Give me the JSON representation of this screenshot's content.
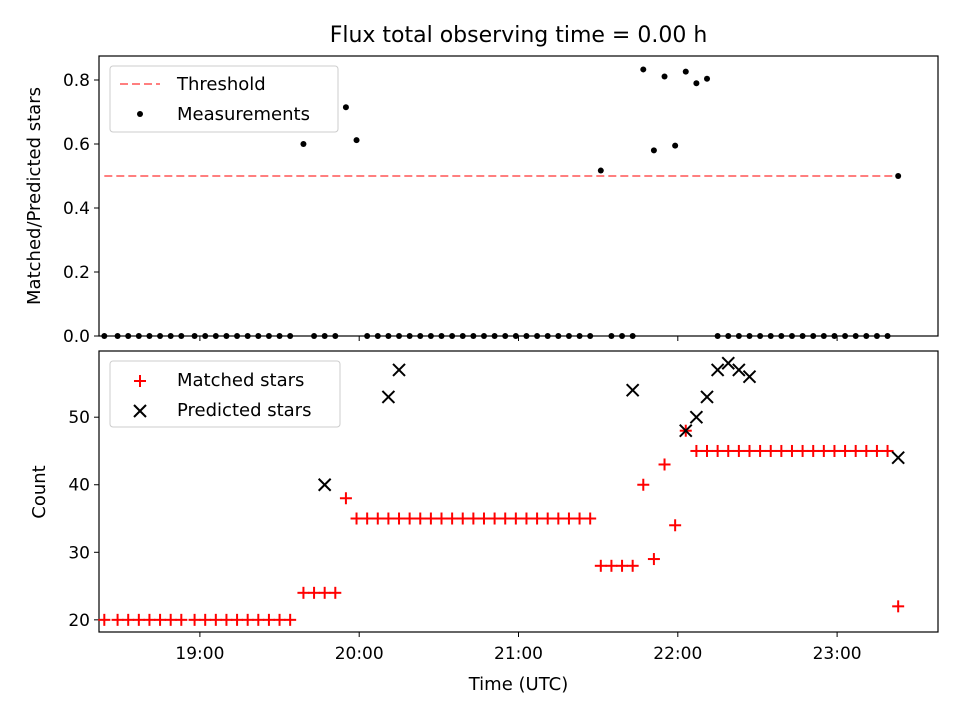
{
  "chart_data": [
    {
      "type": "scatter",
      "title": "Flux total observing time = 0.00 h",
      "xlabel": "",
      "ylabel": "Matched/Predicted stars",
      "ylim": [
        0,
        0.875
      ],
      "xlim": [
        "18:22",
        "23:38"
      ],
      "yticks": [
        "0.0",
        "0.2",
        "0.4",
        "0.6",
        "0.8"
      ],
      "legend": {
        "placement": "top-left",
        "entries": [
          "Threshold",
          "Measurements"
        ]
      },
      "threshold": {
        "name": "Threshold",
        "value": 0.5,
        "x_range": [
          "18:24",
          "23:23"
        ],
        "color": "#ff7f7f",
        "style": "dashed"
      },
      "series": [
        {
          "name": "Measurements",
          "color": "#000000",
          "marker": "dot",
          "x": [
            "18:24",
            "18:29",
            "18:33",
            "18:37",
            "18:41",
            "18:45",
            "18:49",
            "18:53",
            "18:58",
            "19:02",
            "19:06",
            "19:10",
            "19:14",
            "19:18",
            "19:22",
            "19:26",
            "19:30",
            "19:34",
            "19:39",
            "19:43",
            "19:47",
            "19:51",
            "19:55",
            "19:59",
            "20:03",
            "20:07",
            "20:11",
            "20:15",
            "20:19",
            "20:23",
            "20:27",
            "20:31",
            "20:35",
            "20:39",
            "20:43",
            "20:47",
            "20:51",
            "20:55",
            "20:59",
            "21:03",
            "21:07",
            "21:11",
            "21:15",
            "21:19",
            "21:23",
            "21:27",
            "21:31",
            "21:35",
            "21:39",
            "21:43",
            "21:47",
            "21:51",
            "21:55",
            "21:59",
            "22:03",
            "22:07",
            "22:11",
            "22:15",
            "22:19",
            "22:23",
            "22:27",
            "22:31",
            "22:35",
            "22:39",
            "22:43",
            "22:47",
            "22:51",
            "22:55",
            "22:59",
            "23:03",
            "23:07",
            "23:11",
            "23:15",
            "23:19",
            "23:23"
          ],
          "y": [
            0,
            0,
            0,
            0,
            0,
            0,
            0,
            0,
            0,
            0,
            0,
            0,
            0,
            0,
            0,
            0,
            0,
            0,
            0.6,
            0,
            0,
            0,
            0.715,
            0.612,
            0,
            0,
            0,
            0,
            0,
            0,
            0,
            0,
            0,
            0,
            0,
            0,
            0,
            0,
            0,
            0,
            0,
            0,
            0,
            0,
            0,
            0,
            0.517,
            0,
            0,
            0,
            0.833,
            0.58,
            0.811,
            0.595,
            0.826,
            0.79,
            0.804,
            0,
            0,
            0,
            0,
            0,
            0,
            0,
            0,
            0,
            0,
            0,
            0,
            0,
            0,
            0,
            0,
            0,
            0.5
          ]
        }
      ]
    },
    {
      "type": "scatter",
      "title": "",
      "xlabel": "Time (UTC)",
      "ylabel": "Count",
      "ylim": [
        18.2,
        59.8
      ],
      "xlim": [
        "18:22",
        "23:38"
      ],
      "xticks": [
        "19:00",
        "20:00",
        "21:00",
        "22:00",
        "23:00"
      ],
      "yticks": [
        "20",
        "30",
        "40",
        "50"
      ],
      "legend": {
        "placement": "top-left",
        "entries": [
          "Matched stars",
          "Predicted stars"
        ]
      },
      "series": [
        {
          "name": "Matched stars",
          "color": "#ff0000",
          "marker": "plus",
          "x": [
            "18:24",
            "18:29",
            "18:33",
            "18:37",
            "18:41",
            "18:45",
            "18:49",
            "18:53",
            "18:58",
            "19:02",
            "19:06",
            "19:10",
            "19:14",
            "19:18",
            "19:22",
            "19:26",
            "19:30",
            "19:34",
            "19:39",
            "19:43",
            "19:47",
            "19:51",
            "19:55",
            "19:59",
            "20:03",
            "20:07",
            "20:11",
            "20:15",
            "20:19",
            "20:23",
            "20:27",
            "20:31",
            "20:35",
            "20:39",
            "20:43",
            "20:47",
            "20:51",
            "20:55",
            "20:59",
            "21:03",
            "21:07",
            "21:11",
            "21:15",
            "21:19",
            "21:23",
            "21:27",
            "21:31",
            "21:35",
            "21:39",
            "21:43",
            "21:47",
            "21:51",
            "21:55",
            "21:59",
            "22:03",
            "22:07",
            "22:11",
            "22:15",
            "22:19",
            "22:23",
            "22:27",
            "22:31",
            "22:35",
            "22:39",
            "22:43",
            "22:47",
            "22:51",
            "22:55",
            "22:59",
            "23:03",
            "23:07",
            "23:11",
            "23:15",
            "23:19",
            "23:23"
          ],
          "y": [
            20,
            20,
            20,
            20,
            20,
            20,
            20,
            20,
            20,
            20,
            20,
            20,
            20,
            20,
            20,
            20,
            20,
            20,
            24,
            24,
            24,
            24,
            38,
            35,
            35,
            35,
            35,
            35,
            35,
            35,
            35,
            35,
            35,
            35,
            35,
            35,
            35,
            35,
            35,
            35,
            35,
            35,
            35,
            35,
            35,
            35,
            28,
            28,
            28,
            28,
            40,
            29,
            43,
            34,
            48,
            45,
            45,
            45,
            45,
            45,
            45,
            45,
            45,
            45,
            45,
            45,
            45,
            45,
            45,
            45,
            45,
            45,
            45,
            45,
            22
          ]
        },
        {
          "name": "Predicted stars",
          "color": "#000000",
          "marker": "x",
          "x": [
            "19:47",
            "20:11",
            "20:15",
            "21:43",
            "22:03",
            "22:07",
            "22:11",
            "22:15",
            "22:19",
            "22:23",
            "22:27",
            "23:23"
          ],
          "y": [
            40,
            53,
            57,
            54,
            48,
            50,
            53,
            57,
            58,
            57,
            56,
            44
          ]
        }
      ]
    }
  ]
}
